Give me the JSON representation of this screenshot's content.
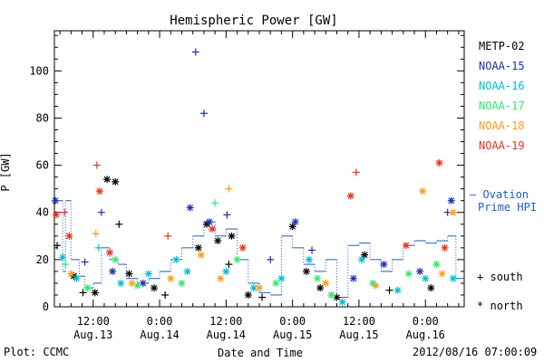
{
  "chart_data": {
    "type": "scatter",
    "title": "Hemispheric Power [GW]",
    "ylabel": "P [GW]",
    "xlabel": "Date and Time",
    "ylim": [
      0,
      117
    ],
    "xlim": [
      "2012-08-13 05:00",
      "2012-08-16 07:00"
    ],
    "yticks": [
      "0",
      "20",
      "40",
      "60",
      "80",
      "100"
    ],
    "xticks": [
      {
        "time": "2012-08-13 12:00",
        "label1": "12:00",
        "label2": "Aug.13"
      },
      {
        "time": "2012-08-14 00:00",
        "label1": "0:00",
        "label2": "Aug.14"
      },
      {
        "time": "2012-08-14 12:00",
        "label1": "12:00",
        "label2": "Aug.14"
      },
      {
        "time": "2012-08-15 00:00",
        "label1": "0:00",
        "label2": "Aug.15"
      },
      {
        "time": "2012-08-15 12:00",
        "label1": "12:00",
        "label2": "Aug.15"
      },
      {
        "time": "2012-08-16 00:00",
        "label1": "0:00",
        "label2": "Aug.16"
      }
    ],
    "series": [
      {
        "name": "METP-02",
        "color": "#000000",
        "points": [
          {
            "t": "2012-08-13 05:30",
            "y": 26,
            "m": "+"
          },
          {
            "t": "2012-08-13 08:30",
            "y": 13,
            "m": "*"
          },
          {
            "t": "2012-08-13 10:10",
            "y": 6,
            "m": "+"
          },
          {
            "t": "2012-08-13 12:20",
            "y": 6,
            "m": "*"
          },
          {
            "t": "2012-08-13 14:30",
            "y": 54,
            "m": "*"
          },
          {
            "t": "2012-08-13 16:00",
            "y": 53,
            "m": "*"
          },
          {
            "t": "2012-08-13 16:40",
            "y": 35,
            "m": "+"
          },
          {
            "t": "2012-08-13 18:30",
            "y": 14,
            "m": "*"
          },
          {
            "t": "2012-08-13 23:00",
            "y": 8,
            "m": "*"
          },
          {
            "t": "2012-08-14 01:00",
            "y": 5,
            "m": "+"
          },
          {
            "t": "2012-08-14 07:00",
            "y": 25,
            "m": "*"
          },
          {
            "t": "2012-08-14 08:30",
            "y": 35,
            "m": "*"
          },
          {
            "t": "2012-08-14 10:30",
            "y": 28,
            "m": "*"
          },
          {
            "t": "2012-08-14 12:30",
            "y": 18,
            "m": "+"
          },
          {
            "t": "2012-08-14 13:00",
            "y": 30,
            "m": "*"
          },
          {
            "t": "2012-08-14 16:00",
            "y": 5,
            "m": "*"
          },
          {
            "t": "2012-08-14 18:30",
            "y": 4,
            "m": "+"
          },
          {
            "t": "2012-08-15 00:00",
            "y": 34,
            "m": "*"
          },
          {
            "t": "2012-08-15 02:30",
            "y": 15,
            "m": "*"
          },
          {
            "t": "2012-08-15 05:00",
            "y": 8,
            "m": "*"
          },
          {
            "t": "2012-08-15 08:00",
            "y": 4,
            "m": "*"
          },
          {
            "t": "2012-08-15 13:00",
            "y": 22,
            "m": "*"
          },
          {
            "t": "2012-08-15 17:30",
            "y": 7,
            "m": "+"
          },
          {
            "t": "2012-08-16 01:00",
            "y": 8,
            "m": "*"
          }
        ]
      },
      {
        "name": "NOAA-15",
        "color": "#1a2fb0",
        "points": [
          {
            "t": "2012-08-13 05:10",
            "y": 45,
            "m": "*"
          },
          {
            "t": "2012-08-13 10:30",
            "y": 19,
            "m": "+"
          },
          {
            "t": "2012-08-13 13:30",
            "y": 40,
            "m": "+"
          },
          {
            "t": "2012-08-13 15:30",
            "y": 15,
            "m": "*"
          },
          {
            "t": "2012-08-13 21:00",
            "y": 10,
            "m": "*"
          },
          {
            "t": "2012-08-14 05:30",
            "y": 42,
            "m": "*"
          },
          {
            "t": "2012-08-14 06:30",
            "y": 108,
            "m": "+"
          },
          {
            "t": "2012-08-14 08:00",
            "y": 82,
            "m": "+"
          },
          {
            "t": "2012-08-14 12:10",
            "y": 39,
            "m": "+"
          },
          {
            "t": "2012-08-14 09:00",
            "y": 36,
            "m": "*"
          },
          {
            "t": "2012-08-14 20:00",
            "y": 20,
            "m": "+"
          },
          {
            "t": "2012-08-15 00:30",
            "y": 36,
            "m": "*"
          },
          {
            "t": "2012-08-15 03:30",
            "y": 24,
            "m": "+"
          },
          {
            "t": "2012-08-15 11:00",
            "y": 12,
            "m": "*"
          },
          {
            "t": "2012-08-15 16:30",
            "y": 18,
            "m": "*"
          },
          {
            "t": "2012-08-15 23:00",
            "y": 15,
            "m": "*"
          },
          {
            "t": "2012-08-16 04:00",
            "y": 40,
            "m": "+"
          },
          {
            "t": "2012-08-16 04:40",
            "y": 45,
            "m": "*"
          }
        ]
      },
      {
        "name": "NOAA-16",
        "color": "#00bcd4",
        "points": [
          {
            "t": "2012-08-13 06:30",
            "y": 21,
            "m": "*"
          },
          {
            "t": "2012-08-13 09:00",
            "y": 12,
            "m": "*"
          },
          {
            "t": "2012-08-13 13:00",
            "y": 25,
            "m": "+"
          },
          {
            "t": "2012-08-13 17:00",
            "y": 10,
            "m": "*"
          },
          {
            "t": "2012-08-13 22:00",
            "y": 14,
            "m": "*"
          },
          {
            "t": "2012-08-14 03:00",
            "y": 20,
            "m": "*"
          },
          {
            "t": "2012-08-14 05:00",
            "y": 15,
            "m": "*"
          },
          {
            "t": "2012-08-14 12:00",
            "y": 15,
            "m": "*"
          },
          {
            "t": "2012-08-14 17:00",
            "y": 8,
            "m": "*"
          },
          {
            "t": "2012-08-14 22:00",
            "y": 12,
            "m": "*"
          },
          {
            "t": "2012-08-15 03:00",
            "y": 20,
            "m": "*"
          },
          {
            "t": "2012-08-15 09:00",
            "y": 2,
            "m": "*"
          },
          {
            "t": "2012-08-15 12:30",
            "y": 20,
            "m": "*"
          },
          {
            "t": "2012-08-15 19:00",
            "y": 7,
            "m": "*"
          },
          {
            "t": "2012-08-16 00:00",
            "y": 12,
            "m": "*"
          },
          {
            "t": "2012-08-16 05:00",
            "y": 12,
            "m": "*"
          }
        ]
      },
      {
        "name": "NOAA-17",
        "color": "#2ee86e",
        "points": [
          {
            "t": "2012-08-13 07:00",
            "y": 18,
            "m": "+"
          },
          {
            "t": "2012-08-13 11:00",
            "y": 8,
            "m": "*"
          },
          {
            "t": "2012-08-13 16:00",
            "y": 20,
            "m": "*"
          },
          {
            "t": "2012-08-13 20:00",
            "y": 9,
            "m": "*"
          },
          {
            "t": "2012-08-14 04:00",
            "y": 10,
            "m": "*"
          },
          {
            "t": "2012-08-14 10:00",
            "y": 44,
            "m": "+"
          },
          {
            "t": "2012-08-14 14:00",
            "y": 20,
            "m": "*"
          },
          {
            "t": "2012-08-14 21:00",
            "y": 10,
            "m": "*"
          },
          {
            "t": "2012-08-15 04:30",
            "y": 12,
            "m": "*"
          },
          {
            "t": "2012-08-15 07:00",
            "y": 5,
            "m": "*"
          },
          {
            "t": "2012-08-15 14:30",
            "y": 10,
            "m": "*"
          },
          {
            "t": "2012-08-15 21:00",
            "y": 14,
            "m": "*"
          },
          {
            "t": "2012-08-16 02:00",
            "y": 18,
            "m": "*"
          }
        ]
      },
      {
        "name": "NOAA-18",
        "color": "#ff9b1a",
        "points": [
          {
            "t": "2012-08-13 08:00",
            "y": 14,
            "m": "*"
          },
          {
            "t": "2012-08-13 12:30",
            "y": 31,
            "m": "+"
          },
          {
            "t": "2012-08-13 19:00",
            "y": 10,
            "m": "*"
          },
          {
            "t": "2012-08-14 02:00",
            "y": 12,
            "m": "*"
          },
          {
            "t": "2012-08-14 07:30",
            "y": 22,
            "m": "*"
          },
          {
            "t": "2012-08-14 11:00",
            "y": 12,
            "m": "*"
          },
          {
            "t": "2012-08-14 12:30",
            "y": 50,
            "m": "+"
          },
          {
            "t": "2012-08-14 18:00",
            "y": 8,
            "m": "*"
          },
          {
            "t": "2012-08-15 06:00",
            "y": 10,
            "m": "*"
          },
          {
            "t": "2012-08-15 15:00",
            "y": 9,
            "m": "*"
          },
          {
            "t": "2012-08-15 23:30",
            "y": 49,
            "m": "*"
          },
          {
            "t": "2012-08-16 03:00",
            "y": 14,
            "m": "*"
          },
          {
            "t": "2012-08-16 05:00",
            "y": 40,
            "m": "*"
          }
        ]
      },
      {
        "name": "NOAA-19",
        "color": "#e8341a",
        "points": [
          {
            "t": "2012-08-13 05:20",
            "y": 39,
            "m": "*"
          },
          {
            "t": "2012-08-13 06:50",
            "y": 40,
            "m": "+"
          },
          {
            "t": "2012-08-13 07:40",
            "y": 30,
            "m": "*"
          },
          {
            "t": "2012-08-13 12:40",
            "y": 60,
            "m": "+"
          },
          {
            "t": "2012-08-13 13:10",
            "y": 49,
            "m": "*"
          },
          {
            "t": "2012-08-13 15:00",
            "y": 23,
            "m": "*"
          },
          {
            "t": "2012-08-14 01:30",
            "y": 30,
            "m": "+"
          },
          {
            "t": "2012-08-14 09:30",
            "y": 33,
            "m": "*"
          },
          {
            "t": "2012-08-14 15:00",
            "y": 25,
            "m": "*"
          },
          {
            "t": "2012-08-15 10:30",
            "y": 47,
            "m": "*"
          },
          {
            "t": "2012-08-15 11:30",
            "y": 57,
            "m": "+"
          },
          {
            "t": "2012-08-15 20:30",
            "y": 26,
            "m": "*"
          },
          {
            "t": "2012-08-16 02:30",
            "y": 61,
            "m": "*"
          },
          {
            "t": "2012-08-16 03:30",
            "y": 25,
            "m": "*"
          }
        ]
      }
    ],
    "ovation": {
      "name": "— Ovation",
      "name2": "Prime HPI",
      "color": "#1f5fbf",
      "steps": [
        {
          "t": "2012-08-13 05:00",
          "y": 45
        },
        {
          "t": "2012-08-13 06:30",
          "y": 15
        },
        {
          "t": "2012-08-13 07:00",
          "y": 45
        },
        {
          "t": "2012-08-13 08:00",
          "y": 20
        },
        {
          "t": "2012-08-13 09:30",
          "y": 13
        },
        {
          "t": "2012-08-13 10:30",
          "y": 8
        },
        {
          "t": "2012-08-13 12:00",
          "y": 10
        },
        {
          "t": "2012-08-13 13:30",
          "y": 25
        },
        {
          "t": "2012-08-13 15:00",
          "y": 20
        },
        {
          "t": "2012-08-13 16:30",
          "y": 18
        },
        {
          "t": "2012-08-13 18:00",
          "y": 12
        },
        {
          "t": "2012-08-13 20:00",
          "y": 10
        },
        {
          "t": "2012-08-13 22:00",
          "y": 12
        },
        {
          "t": "2012-08-14 00:00",
          "y": 15
        },
        {
          "t": "2012-08-14 02:00",
          "y": 20
        },
        {
          "t": "2012-08-14 04:00",
          "y": 25
        },
        {
          "t": "2012-08-14 06:00",
          "y": 30
        },
        {
          "t": "2012-08-14 08:00",
          "y": 36
        },
        {
          "t": "2012-08-14 10:00",
          "y": 30
        },
        {
          "t": "2012-08-14 12:00",
          "y": 33
        },
        {
          "t": "2012-08-14 14:00",
          "y": 20
        },
        {
          "t": "2012-08-14 16:00",
          "y": 10
        },
        {
          "t": "2012-08-14 18:00",
          "y": 6
        },
        {
          "t": "2012-08-14 20:00",
          "y": 5
        },
        {
          "t": "2012-08-14 22:00",
          "y": 30
        },
        {
          "t": "2012-08-15 00:00",
          "y": 25
        },
        {
          "t": "2012-08-15 02:00",
          "y": 18
        },
        {
          "t": "2012-08-15 04:00",
          "y": 15
        },
        {
          "t": "2012-08-15 06:00",
          "y": 20
        },
        {
          "t": "2012-08-15 08:00",
          "y": 4
        },
        {
          "t": "2012-08-15 10:00",
          "y": 26
        },
        {
          "t": "2012-08-15 12:00",
          "y": 27
        },
        {
          "t": "2012-08-15 14:00",
          "y": 20
        },
        {
          "t": "2012-08-15 16:00",
          "y": 15
        },
        {
          "t": "2012-08-15 18:00",
          "y": 20
        },
        {
          "t": "2012-08-15 20:00",
          "y": 26
        },
        {
          "t": "2012-08-15 22:00",
          "y": 28
        },
        {
          "t": "2012-08-16 00:00",
          "y": 27
        },
        {
          "t": "2012-08-16 02:00",
          "y": 28
        },
        {
          "t": "2012-08-16 04:00",
          "y": 30
        },
        {
          "t": "2012-08-16 05:30",
          "y": 12
        },
        {
          "t": "2012-08-16 07:00",
          "y": 12
        }
      ]
    },
    "marker_legend": [
      {
        "symbol": "+",
        "label": "south"
      },
      {
        "symbol": "*",
        "label": "north"
      }
    ]
  },
  "footer": {
    "left": "Plot: CCMC",
    "right": "2012/08/16 07:00:09"
  }
}
